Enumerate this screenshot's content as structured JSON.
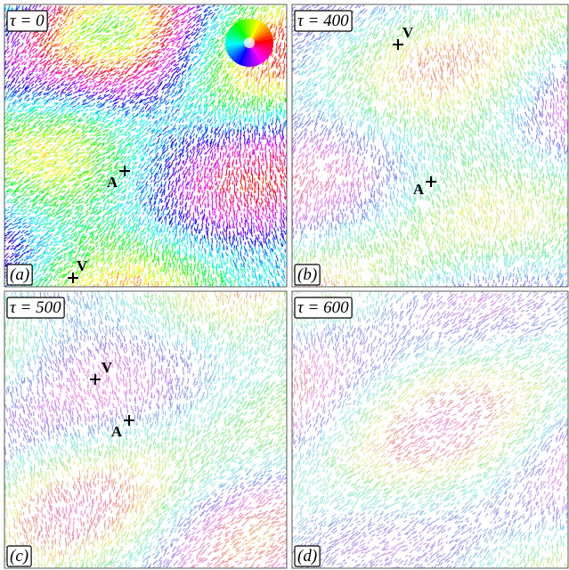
{
  "panels": [
    {
      "time": "τ = 0",
      "label": "(a)",
      "markers": [
        {
          "label": "A"
        },
        {
          "label": "V"
        }
      ]
    },
    {
      "time": "τ = 400",
      "label": "(b)",
      "markers": [
        {
          "label": "V"
        },
        {
          "label": "A"
        }
      ]
    },
    {
      "time": "τ = 500",
      "label": "(c)",
      "markers": [
        {
          "label": "V"
        },
        {
          "label": "A"
        }
      ]
    },
    {
      "time": "τ = 600",
      "label": "(d)",
      "markers": []
    }
  ]
}
